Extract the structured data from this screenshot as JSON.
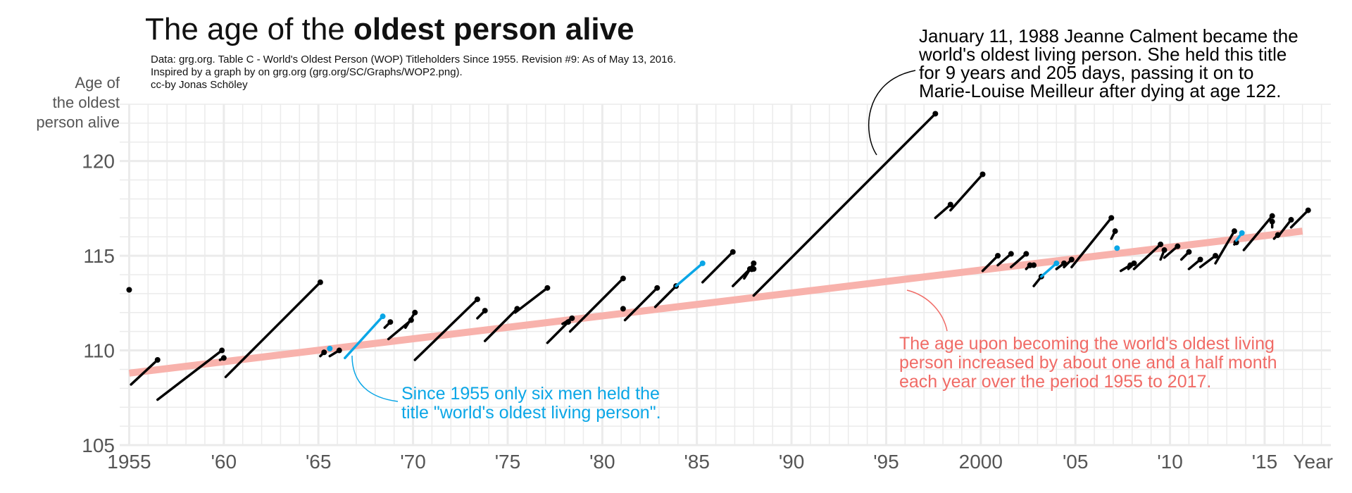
{
  "chart_data": {
    "type": "line",
    "title_regular": "The age of the",
    "title_bold": "oldest person alive",
    "subtitle_lines": [
      "Data: grg.org. Table C - World's Oldest Person (WOP) Titleholders Since 1955. Revision #9: As of May 13, 2016.",
      "Inspired by a graph by on grg.org (grg.org/SC/Graphs/WOP2.png).",
      "cc-by Jonas Schöley"
    ],
    "ylabel_lines": [
      "Age of",
      "the oldest",
      "person alive"
    ],
    "xlabel": "Year",
    "xlim": [
      1954.5,
      2018.5
    ],
    "ylim": [
      105,
      123
    ],
    "y_ticks": [
      105,
      110,
      115,
      120
    ],
    "x_ticks": [
      1955,
      1960,
      1965,
      1970,
      1975,
      1980,
      1985,
      1990,
      1995,
      2000,
      2005,
      2010,
      2015
    ],
    "x_tick_labels": [
      "1955",
      "'60",
      "'65",
      "'70",
      "'75",
      "'80",
      "'85",
      "'90",
      "'95",
      "2000",
      "'05",
      "'10",
      "'15"
    ],
    "grid": true,
    "colors": {
      "women": "#000000",
      "men": "#0aa6e6",
      "trend": "#f8b2ac",
      "trend_text": "#f06b66"
    },
    "trend_line": {
      "x": [
        1955,
        2017
      ],
      "y": [
        108.8,
        116.3
      ]
    },
    "series": [
      {
        "category": "women",
        "segments": [
          [
            1955.0,
            113.2,
            1955.0,
            113.2
          ],
          [
            1955.1,
            108.2,
            1956.5,
            109.5
          ],
          [
            1956.5,
            107.4,
            1959.9,
            110.0
          ],
          [
            1959.8,
            109.5,
            1960.0,
            109.6
          ],
          [
            1960.1,
            108.6,
            1965.1,
            113.6
          ],
          [
            1965.1,
            109.7,
            1965.3,
            109.9
          ],
          [
            1965.6,
            109.7,
            1966.1,
            110.0
          ],
          [
            1968.5,
            111.2,
            1968.8,
            111.5
          ],
          [
            1968.7,
            110.6,
            1969.9,
            111.6
          ],
          [
            1969.6,
            111.2,
            1970.1,
            112.0
          ],
          [
            1970.1,
            109.5,
            1973.4,
            112.7
          ],
          [
            1973.4,
            111.7,
            1973.8,
            112.1
          ],
          [
            1973.8,
            110.5,
            1975.5,
            112.2
          ],
          [
            1975.4,
            112.0,
            1977.1,
            113.3
          ],
          [
            1977.1,
            110.4,
            1978.2,
            111.5
          ],
          [
            1977.9,
            111.4,
            1978.4,
            111.7
          ],
          [
            1978.3,
            111.0,
            1981.1,
            113.8
          ],
          [
            1981.1,
            112.2,
            1981.1,
            112.2
          ],
          [
            1981.2,
            111.6,
            1982.9,
            113.3
          ],
          [
            1982.8,
            112.3,
            1983.9,
            113.4
          ],
          [
            1985.3,
            113.6,
            1986.9,
            115.2
          ],
          [
            1986.9,
            113.4,
            1987.8,
            114.3
          ],
          [
            1987.5,
            113.8,
            1988.0,
            114.6
          ],
          [
            1987.9,
            114.2,
            1988.0,
            114.3
          ],
          [
            1988.0,
            112.9,
            1997.6,
            122.5
          ],
          [
            1997.6,
            117.0,
            1998.4,
            117.7
          ],
          [
            1998.4,
            117.4,
            2000.1,
            119.3
          ],
          [
            2000.1,
            114.2,
            2000.9,
            115.0
          ],
          [
            2000.9,
            114.5,
            2001.6,
            115.1
          ],
          [
            2001.6,
            114.4,
            2002.4,
            115.1
          ],
          [
            2002.4,
            114.3,
            2002.6,
            114.5
          ],
          [
            2002.6,
            114.4,
            2002.8,
            114.5
          ],
          [
            2002.8,
            113.4,
            2003.2,
            113.9
          ],
          [
            2004.0,
            114.3,
            2004.4,
            114.6
          ],
          [
            2004.4,
            114.4,
            2004.8,
            114.8
          ],
          [
            2004.8,
            114.4,
            2006.9,
            117.0
          ],
          [
            2006.9,
            115.9,
            2007.1,
            116.3
          ],
          [
            2007.4,
            114.2,
            2007.9,
            114.5
          ],
          [
            2007.8,
            114.3,
            2008.1,
            114.6
          ],
          [
            2008.1,
            114.3,
            2009.5,
            115.6
          ],
          [
            2009.5,
            114.8,
            2009.7,
            115.3
          ],
          [
            2009.7,
            114.9,
            2010.4,
            115.5
          ],
          [
            2010.6,
            114.8,
            2011.0,
            115.2
          ],
          [
            2011.0,
            114.3,
            2011.6,
            114.8
          ],
          [
            2011.6,
            114.4,
            2012.4,
            115.0
          ],
          [
            2012.4,
            114.6,
            2013.4,
            116.3
          ],
          [
            2013.4,
            115.6,
            2013.5,
            115.7
          ],
          [
            2013.9,
            115.3,
            2015.4,
            117.1
          ],
          [
            2015.4,
            116.5,
            2015.4,
            116.8
          ],
          [
            2015.5,
            115.9,
            2015.7,
            116.1
          ],
          [
            2015.7,
            116.0,
            2016.4,
            116.9
          ],
          [
            2016.4,
            116.5,
            2017.3,
            117.4
          ]
        ]
      },
      {
        "category": "men",
        "segments": [
          [
            1965.6,
            110.1,
            1965.6,
            110.1
          ],
          [
            1966.4,
            109.6,
            1968.4,
            111.8
          ],
          [
            1983.9,
            113.4,
            1985.3,
            114.6
          ],
          [
            2003.2,
            113.9,
            2004.0,
            114.6
          ],
          [
            2007.2,
            115.4,
            2007.2,
            115.4
          ],
          [
            2013.5,
            115.8,
            2013.8,
            116.2
          ]
        ]
      }
    ],
    "annotations": [
      {
        "lines": [
          "January 11, 1988 Jeanne Calment became the",
          "world's oldest living person. She held this title",
          "for 9 years and 205 days, passing it on to",
          "Marie-Louise Meilleur after dying at age 122."
        ],
        "color": "#000000"
      },
      {
        "lines": [
          "Since 1955 only six men held the",
          "title \"world's oldest living person\"."
        ],
        "color": "#0aa6e6"
      },
      {
        "lines": [
          "The age upon becoming the world's oldest living",
          "person increased by about one and a half month",
          "each year over the period 1955 to 2017."
        ],
        "color": "#f06b66"
      }
    ]
  }
}
